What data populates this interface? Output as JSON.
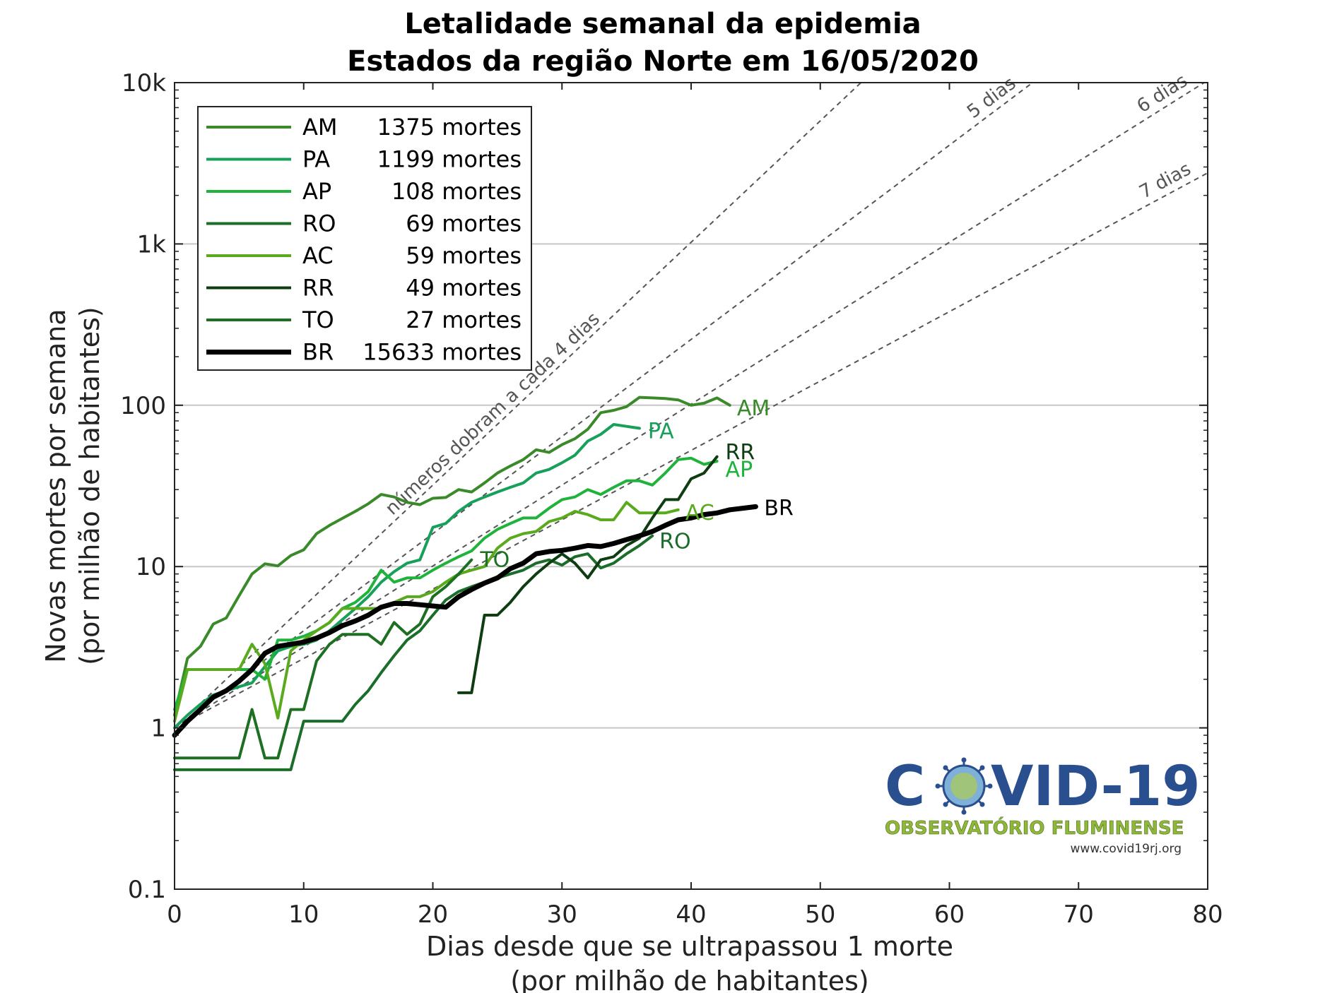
{
  "chart_data": {
    "type": "line",
    "title": [
      "Letalidade semanal da epidemia",
      "Estados da região Norte em 16/05/2020"
    ],
    "xlabel": [
      "Dias desde que se ultrapassou 1 morte",
      "(por milhão de habitantes)"
    ],
    "ylabel": [
      "Novas mortes por semana",
      "(por milhão de habitantes)"
    ],
    "xlim": [
      0,
      80
    ],
    "ylim": [
      0.1,
      10000
    ],
    "yscale": "log",
    "xticks": [
      0,
      10,
      20,
      30,
      40,
      50,
      60,
      70,
      80
    ],
    "xtick_labels": [
      "0",
      "10",
      "20",
      "30",
      "40",
      "50",
      "60",
      "70",
      "80"
    ],
    "yticks": [
      0.1,
      1,
      10,
      100,
      1000,
      10000
    ],
    "ytick_labels": [
      "0.1",
      "1",
      "10",
      "100",
      "1k",
      "10k"
    ],
    "grid": "horizontal",
    "legend_position": "top-left",
    "reference_lines": [
      {
        "doubling_days": 4,
        "label": "números dobram a cada 4 dias"
      },
      {
        "doubling_days": 5,
        "label": "5 dias"
      },
      {
        "doubling_days": 6,
        "label": "6 dias"
      },
      {
        "doubling_days": 7,
        "label": "7 dias"
      }
    ],
    "series": [
      {
        "name": "AM",
        "legend": "1375 mortes",
        "color": "#3a8a2a",
        "width": 4,
        "x": [
          0,
          1,
          2,
          3,
          4,
          5,
          6,
          7,
          8,
          9,
          10,
          11,
          12,
          13,
          14,
          15,
          16,
          17,
          18,
          19,
          20,
          21,
          22,
          23,
          24,
          25,
          26,
          27,
          28,
          29,
          30,
          31,
          32,
          33,
          34,
          35,
          36,
          37,
          38,
          39,
          40,
          41,
          42,
          43
        ],
        "y": [
          1.2,
          2.7,
          3.2,
          4.4,
          4.8,
          6.6,
          9.0,
          10.4,
          10.1,
          11.7,
          12.7,
          16.0,
          18.0,
          19.9,
          22.0,
          24.5,
          28.0,
          27.0,
          25.0,
          24.2,
          26.5,
          26.8,
          30.0,
          29.0,
          33.0,
          38.0,
          42.0,
          46.0,
          53.0,
          51.0,
          57.0,
          62.0,
          71.0,
          90.0,
          93.0,
          98.0,
          112.0,
          111.0,
          110.0,
          108.0,
          100.0,
          103.0,
          111.0,
          100.0
        ]
      },
      {
        "name": "PA",
        "legend": "1199 mortes",
        "color": "#16a05a",
        "width": 4,
        "x": [
          0,
          1,
          2,
          3,
          4,
          5,
          6,
          7,
          8,
          9,
          10,
          11,
          12,
          13,
          14,
          15,
          16,
          17,
          18,
          19,
          20,
          21,
          22,
          23,
          24,
          25,
          26,
          27,
          28,
          29,
          30,
          31,
          32,
          33,
          34,
          35,
          36
        ],
        "y": [
          1.0,
          1.2,
          1.4,
          1.6,
          1.7,
          1.8,
          1.9,
          2.4,
          3.0,
          3.2,
          3.3,
          3.5,
          4.0,
          4.7,
          5.5,
          6.5,
          8.0,
          9.3,
          10.5,
          11.0,
          17.5,
          18.5,
          22.0,
          25.0,
          27.0,
          29.0,
          31.0,
          33.0,
          38.0,
          40.0,
          44.0,
          49.0,
          60.0,
          66.0,
          76.0,
          74.0,
          72.0
        ]
      },
      {
        "name": "AP",
        "legend": "108 mortes",
        "color": "#1fb33c",
        "width": 4,
        "x": [
          0,
          1,
          2,
          3,
          4,
          5,
          6,
          7,
          8,
          9,
          10,
          11,
          12,
          13,
          14,
          15,
          16,
          17,
          18,
          19,
          20,
          21,
          22,
          23,
          24,
          25,
          26,
          27,
          28,
          29,
          30,
          31,
          32,
          33,
          34,
          35,
          36,
          37,
          38,
          39,
          40,
          41,
          42
        ],
        "y": [
          1.3,
          2.3,
          2.3,
          2.3,
          2.3,
          2.3,
          2.3,
          2.0,
          3.5,
          3.5,
          3.7,
          4.0,
          4.5,
          5.5,
          6.0,
          7.0,
          9.5,
          8.0,
          8.5,
          8.5,
          9.5,
          10.5,
          11.5,
          12.5,
          15.0,
          17.0,
          18.5,
          20.0,
          20.0,
          23.0,
          26.0,
          27.0,
          30.0,
          28.0,
          31.0,
          34.0,
          34.0,
          32.0,
          38.0,
          46.0,
          47.0,
          43.0,
          45.0
        ]
      },
      {
        "name": "RO",
        "legend": "69 mortes",
        "color": "#1a6e2a",
        "width": 4,
        "x": [
          0,
          1,
          2,
          3,
          4,
          5,
          6,
          7,
          8,
          9,
          10,
          11,
          12,
          13,
          14,
          15,
          16,
          17,
          18,
          19,
          20,
          21,
          22,
          23,
          24,
          25,
          26,
          27,
          28,
          29,
          30,
          31,
          32,
          33,
          34,
          35,
          36,
          37
        ],
        "y": [
          0.55,
          0.55,
          0.55,
          0.55,
          0.55,
          0.55,
          0.55,
          0.55,
          0.55,
          0.55,
          1.1,
          1.1,
          1.1,
          1.1,
          1.4,
          1.7,
          2.2,
          2.8,
          3.5,
          4.0,
          5.0,
          6.2,
          7.0,
          7.5,
          8.0,
          8.5,
          9.0,
          9.5,
          10.5,
          11.0,
          10.2,
          11.5,
          12.0,
          9.8,
          10.5,
          12.0,
          13.5,
          15.5
        ]
      },
      {
        "name": "AC",
        "legend": "59 mortes",
        "color": "#5aaa1e",
        "width": 4,
        "x": [
          0,
          1,
          2,
          3,
          4,
          5,
          6,
          7,
          8,
          9,
          10,
          11,
          12,
          13,
          14,
          15,
          16,
          17,
          18,
          19,
          20,
          21,
          22,
          23,
          24,
          25,
          26,
          27,
          28,
          29,
          30,
          31,
          32,
          33,
          34,
          35,
          36,
          37,
          38,
          39
        ],
        "y": [
          1.1,
          2.3,
          2.3,
          2.3,
          2.3,
          2.3,
          3.3,
          2.5,
          1.15,
          3.0,
          3.5,
          4.0,
          4.5,
          5.5,
          5.5,
          5.5,
          5.5,
          6.0,
          6.5,
          6.5,
          7.0,
          8.0,
          9.0,
          9.5,
          10.0,
          13.0,
          15.0,
          16.0,
          16.5,
          19.0,
          20.0,
          22.0,
          21.0,
          19.5,
          19.5,
          25.0,
          21.5,
          21.5,
          21.5,
          22.5
        ]
      },
      {
        "name": "RR",
        "legend": "49 mortes",
        "color": "#0f3d12",
        "width": 4,
        "x": [
          22,
          23,
          24,
          25,
          26,
          27,
          28,
          29,
          30,
          31,
          32,
          33,
          34,
          35,
          36,
          37,
          38,
          39,
          40,
          41,
          42
        ],
        "y": [
          1.65,
          1.65,
          5.0,
          5.0,
          6.0,
          7.5,
          9.0,
          10.5,
          12.0,
          10.5,
          8.5,
          11.0,
          11.5,
          13.5,
          15.0,
          20.0,
          26.0,
          26.0,
          35.0,
          38.0,
          48.0
        ]
      },
      {
        "name": "TO",
        "legend": "27 mortes",
        "color": "#1d6f22",
        "width": 4,
        "x": [
          0,
          1,
          2,
          3,
          4,
          5,
          6,
          7,
          8,
          9,
          10,
          11,
          12,
          13,
          14,
          15,
          16,
          17,
          18,
          19,
          20,
          21,
          22,
          23
        ],
        "y": [
          0.65,
          0.65,
          0.65,
          0.65,
          0.65,
          0.65,
          1.3,
          0.65,
          0.65,
          1.3,
          1.3,
          2.6,
          3.3,
          3.8,
          3.8,
          3.8,
          3.3,
          4.5,
          3.8,
          4.4,
          6.5,
          7.5,
          9.0,
          11.0
        ]
      },
      {
        "name": "BR",
        "legend": "15633 mortes",
        "color": "#000000",
        "width": 7,
        "x": [
          0,
          1,
          2,
          3,
          4,
          5,
          6,
          7,
          8,
          9,
          10,
          11,
          12,
          13,
          14,
          15,
          16,
          17,
          18,
          19,
          20,
          21,
          22,
          23,
          24,
          25,
          26,
          27,
          28,
          29,
          30,
          31,
          32,
          33,
          34,
          35,
          36,
          37,
          38,
          39,
          40,
          41,
          42,
          43,
          44,
          45
        ],
        "y": [
          0.9,
          1.1,
          1.3,
          1.55,
          1.7,
          1.95,
          2.3,
          2.9,
          3.2,
          3.3,
          3.4,
          3.6,
          3.9,
          4.3,
          4.6,
          5.0,
          5.6,
          5.9,
          5.9,
          5.8,
          5.7,
          5.6,
          6.5,
          7.2,
          7.9,
          8.5,
          9.7,
          10.5,
          12.0,
          12.4,
          12.6,
          13.0,
          13.5,
          13.3,
          13.9,
          14.7,
          15.5,
          16.5,
          18.0,
          19.5,
          20.0,
          21.0,
          21.5,
          22.5,
          23.0,
          23.5
        ]
      }
    ],
    "end_labels": [
      "AM",
      "PA",
      "RR",
      "AP",
      "AC",
      "RO",
      "TO",
      "BR"
    ]
  },
  "logo": {
    "name": "COVID-19",
    "subtitle": "OBSERVATÓRIO FLUMINENSE",
    "url": "www.covid19rj.org"
  }
}
